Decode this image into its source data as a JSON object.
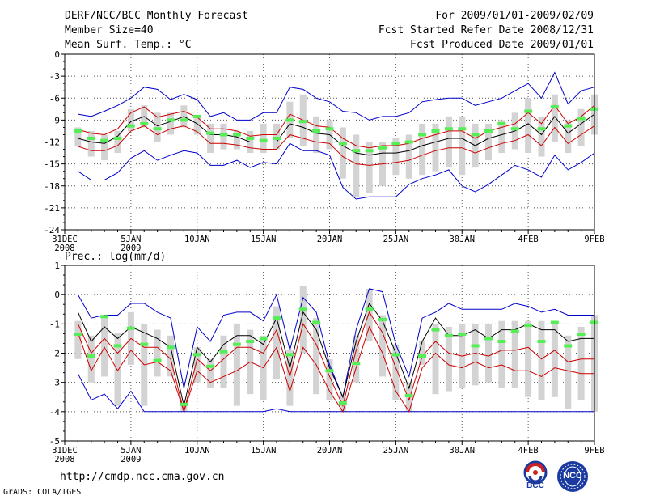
{
  "header": {
    "title": "DERF/NCC/BCC Monthly Forecast",
    "member_size": "Member Size=40",
    "variable": "Mean Surf. Temp.: °C",
    "forecast_period": "For 2009/01/01-2009/02/09",
    "start_date": "Fcst Started Refer Date 2008/12/31",
    "produced_date": "Fcst Produced Date 2009/01/01"
  },
  "footer": {
    "url": "http://cmdp.ncc.cma.gov.cn",
    "grads": "GrADS: COLA/IGES",
    "logo1_label": "BCC",
    "logo2_label": "NCC"
  },
  "colors": {
    "box": "#d3d3d3",
    "mean": "#000000",
    "red": "#cc0000",
    "blue": "#0000cc",
    "green": "#55ee55",
    "grid": "#555555"
  },
  "chart_data": [
    {
      "type": "line",
      "title": "Mean Surf. Temp.: °C",
      "ylabel": "°C",
      "ylim": [
        -24,
        0
      ],
      "yticks": [
        "0",
        "-3",
        "-6",
        "-9",
        "-12",
        "-15",
        "-18",
        "-21",
        "-24"
      ],
      "xticks": [
        {
          "day": 0,
          "label": "31DEC",
          "sub": "2008"
        },
        {
          "day": 5,
          "label": "5JAN",
          "sub": "2009"
        },
        {
          "day": 10,
          "label": "10JAN",
          "sub": ""
        },
        {
          "day": 15,
          "label": "15JAN",
          "sub": ""
        },
        {
          "day": 20,
          "label": "20JAN",
          "sub": ""
        },
        {
          "day": 25,
          "label": "25JAN",
          "sub": ""
        },
        {
          "day": 30,
          "label": "30JAN",
          "sub": ""
        },
        {
          "day": 35,
          "label": "4FEB",
          "sub": ""
        },
        {
          "day": 40,
          "label": "9FEB",
          "sub": ""
        }
      ],
      "days": [
        1,
        2,
        3,
        4,
        5,
        6,
        7,
        8,
        9,
        10,
        11,
        12,
        13,
        14,
        15,
        16,
        17,
        18,
        19,
        20,
        21,
        22,
        23,
        24,
        25,
        26,
        27,
        28,
        29,
        30,
        31,
        32,
        33,
        34,
        35,
        36,
        37,
        38,
        39,
        40
      ],
      "mean": [
        -11.5,
        -12,
        -12.2,
        -11.2,
        -9.2,
        -8.5,
        -9.8,
        -9.2,
        -8.5,
        -9.5,
        -11,
        -11,
        -11.3,
        -12,
        -12,
        -12,
        -9.5,
        -10,
        -10.8,
        -11,
        -12.5,
        -13.5,
        -13.8,
        -13.5,
        -13.5,
        -13.2,
        -12.5,
        -12,
        -11.5,
        -11.5,
        -12.5,
        -11.5,
        -11,
        -10.5,
        -9.5,
        -11,
        -8.5,
        -10.8,
        -9.5,
        -8.2
      ],
      "red_upper": [
        -10.3,
        -10.8,
        -11,
        -10.2,
        -8,
        -7.2,
        -8.6,
        -8.2,
        -7.8,
        -8.6,
        -10.2,
        -10.2,
        -10.5,
        -11.2,
        -11,
        -11,
        -8.2,
        -9,
        -9.8,
        -10,
        -11.5,
        -12.5,
        -12.8,
        -12.5,
        -12.5,
        -12.2,
        -11.5,
        -11,
        -10.5,
        -10.5,
        -11.5,
        -10.5,
        -10,
        -9.5,
        -8,
        -9.5,
        -7,
        -9.5,
        -8.5,
        -7
      ],
      "red_lower": [
        -12.6,
        -13.2,
        -13.2,
        -12.5,
        -10.5,
        -9.8,
        -11,
        -10.2,
        -9.8,
        -10.6,
        -12.2,
        -12.2,
        -12.4,
        -12.8,
        -13,
        -13,
        -11,
        -11.5,
        -12,
        -12.2,
        -14,
        -15,
        -15.2,
        -15,
        -14.8,
        -14.5,
        -13.8,
        -13.2,
        -12.8,
        -12.8,
        -13.5,
        -12.8,
        -12.2,
        -11.8,
        -11,
        -12.5,
        -10,
        -12.2,
        -11,
        -9.8
      ],
      "blue_upper": [
        -8.2,
        -8.5,
        -7.8,
        -7,
        -6,
        -4.5,
        -4.8,
        -6.2,
        -5.5,
        -6.2,
        -8.5,
        -8,
        -9,
        -9,
        -8,
        -8,
        -4.5,
        -4.8,
        -6,
        -6.5,
        -7.8,
        -8,
        -9,
        -8.5,
        -8.5,
        -8,
        -6.5,
        -6.2,
        -6,
        -6,
        -7,
        -6.5,
        -6,
        -5,
        -4,
        -6,
        -2.5,
        -6.8,
        -5,
        -4.5
      ],
      "blue_lower": [
        -16,
        -17.2,
        -17.2,
        -16.2,
        -14.2,
        -13.2,
        -14.5,
        -13.8,
        -13.2,
        -13.5,
        -15.2,
        -15.2,
        -14.5,
        -15.5,
        -14.8,
        -15,
        -12.2,
        -13.2,
        -13.2,
        -13.8,
        -18.2,
        -19.8,
        -19.5,
        -19.5,
        -19.5,
        -17.8,
        -17,
        -16.5,
        -15.8,
        -18,
        -18.8,
        -17.8,
        -16.5,
        -15.2,
        -15.8,
        -16.8,
        -13.8,
        -15.8,
        -14.8,
        -13.5
      ],
      "box_top": [
        -10,
        -10.5,
        -11,
        -10.5,
        -7.5,
        -7,
        -8,
        -8,
        -7,
        -8.5,
        -9.5,
        -9.5,
        -10.5,
        -10.5,
        -9.5,
        -9.5,
        -6.5,
        -5.5,
        -8.5,
        -9,
        -10,
        -11,
        -12,
        -12,
        -11.5,
        -11,
        -9.5,
        -9.5,
        -8.5,
        -8.5,
        -9.5,
        -9.5,
        -9,
        -8,
        -6,
        -8.5,
        -5.5,
        -9,
        -7.5,
        -5.5
      ],
      "box_bottom": [
        -12.5,
        -14,
        -14.5,
        -13.5,
        -10.5,
        -10,
        -12,
        -11,
        -10,
        -11,
        -13.5,
        -13,
        -13,
        -13.5,
        -13.5,
        -13,
        -11.5,
        -12.5,
        -13.5,
        -13,
        -17,
        -19.5,
        -19,
        -18,
        -16.5,
        -17,
        -16.5,
        -16,
        -15.5,
        -16.5,
        -15.5,
        -14.5,
        -13.5,
        -13,
        -13.5,
        -14,
        -12,
        -13.5,
        -12.5,
        -11
      ],
      "green": [
        -10.5,
        -11.5,
        -11.8,
        -11.5,
        -9.8,
        -9.5,
        -10.2,
        -9,
        -9,
        -8.5,
        -10.8,
        -11,
        -11,
        -11.5,
        -11.8,
        -11.5,
        -9,
        -9.2,
        -10.5,
        -10.2,
        -12.2,
        -13.2,
        -13.2,
        -12.8,
        -12.2,
        -12,
        -11,
        -10.5,
        -10.2,
        -10.2,
        -11,
        -10.5,
        -9.5,
        -10.2,
        -7.8,
        -10.2,
        -7.2,
        -9.8,
        -8.8,
        -7.5
      ]
    },
    {
      "type": "line",
      "title": "Prec.: log(mm/d)",
      "ylabel": "log(mm/d)",
      "ylim": [
        -5,
        1
      ],
      "yticks": [
        "1",
        "0",
        "-1",
        "-2",
        "-3",
        "-4",
        "-5"
      ],
      "xticks": [
        {
          "day": 0,
          "label": "31DEC",
          "sub": "2008"
        },
        {
          "day": 5,
          "label": "5JAN",
          "sub": "2009"
        },
        {
          "day": 10,
          "label": "10JAN",
          "sub": ""
        },
        {
          "day": 15,
          "label": "15JAN",
          "sub": ""
        },
        {
          "day": 20,
          "label": "20JAN",
          "sub": ""
        },
        {
          "day": 25,
          "label": "25JAN",
          "sub": ""
        },
        {
          "day": 30,
          "label": "30JAN",
          "sub": ""
        },
        {
          "day": 35,
          "label": "4FEB",
          "sub": ""
        },
        {
          "day": 40,
          "label": "9FEB",
          "sub": ""
        }
      ],
      "days": [
        1,
        2,
        3,
        4,
        5,
        6,
        7,
        8,
        9,
        10,
        11,
        12,
        13,
        14,
        15,
        16,
        17,
        18,
        19,
        20,
        21,
        22,
        23,
        24,
        25,
        26,
        27,
        28,
        29,
        30,
        31,
        32,
        33,
        34,
        35,
        36,
        37,
        38,
        39,
        40
      ],
      "mean": [
        -0.6,
        -1.6,
        -1.1,
        -1.5,
        -1.1,
        -1.3,
        -1.5,
        -1.8,
        -3.8,
        -1.8,
        -2.3,
        -1.7,
        -1.4,
        -1.4,
        -1.7,
        -0.8,
        -2.5,
        -0.6,
        -1.2,
        -2.5,
        -3.5,
        -1.6,
        -0.3,
        -0.9,
        -2.0,
        -3.2,
        -1.6,
        -0.8,
        -1.4,
        -1.4,
        -1.2,
        -1.5,
        -1.2,
        -1.2,
        -1.0,
        -1.2,
        -1.2,
        -1.6,
        -1.5,
        -1.5
      ],
      "red_upper": [
        -1.0,
        -2.0,
        -1.5,
        -2.0,
        -1.5,
        -1.8,
        -1.8,
        -2.2,
        -4.0,
        -2.2,
        -2.6,
        -2.2,
        -1.8,
        -1.8,
        -2.0,
        -1.2,
        -2.8,
        -1.0,
        -1.7,
        -2.8,
        -3.8,
        -1.9,
        -0.6,
        -1.3,
        -2.5,
        -3.6,
        -2.1,
        -1.6,
        -2.0,
        -2.1,
        -2.0,
        -2.1,
        -1.9,
        -1.9,
        -1.8,
        -2.2,
        -1.9,
        -2.3,
        -2.2,
        -2.2
      ],
      "red_lower": [
        -1.3,
        -2.6,
        -1.8,
        -2.6,
        -1.9,
        -2.4,
        -2.3,
        -2.6,
        -4.0,
        -2.6,
        -3.0,
        -2.8,
        -2.6,
        -2.3,
        -2.5,
        -1.8,
        -3.3,
        -1.8,
        -2.4,
        -3.3,
        -4.0,
        -2.5,
        -1.1,
        -2.0,
        -3.3,
        -4.0,
        -2.5,
        -2.0,
        -2.4,
        -2.5,
        -2.3,
        -2.5,
        -2.4,
        -2.6,
        -2.6,
        -2.8,
        -2.5,
        -2.6,
        -2.7,
        -2.7
      ],
      "blue_upper": [
        0,
        -0.8,
        -0.7,
        -0.7,
        -0.3,
        -0.3,
        -0.6,
        -0.8,
        -3.2,
        -1.1,
        -1.6,
        -0.7,
        -0.6,
        -0.6,
        -0.9,
        0.0,
        -1.9,
        -0.1,
        -0.6,
        -2.4,
        -3.5,
        -1.2,
        0.2,
        0.1,
        -1.7,
        -2.8,
        -0.8,
        -0.6,
        -0.3,
        -0.5,
        -0.5,
        -0.5,
        -0.5,
        -0.3,
        -0.4,
        -0.6,
        -0.5,
        -0.7,
        -0.7,
        -0.7
      ],
      "blue_lower": [
        -2.7,
        -3.6,
        -3.4,
        -3.9,
        -3.3,
        -4.0,
        -4.0,
        -4.0,
        -4.0,
        -4.0,
        -4.0,
        -4.0,
        -4.0,
        -4.0,
        -4.0,
        -3.9,
        -4.0,
        -4.0,
        -4.0,
        -4.0,
        -4.0,
        -4.0,
        -4.0,
        -4.0,
        -4.0,
        -4.0,
        -4.0,
        -4.0,
        -4.0,
        -4.0,
        -4.0,
        -4.0,
        -4.0,
        -4.0,
        -4.0,
        -4.0,
        -4.0,
        -4.0,
        -4.0,
        -4.0
      ],
      "box_top": [
        -0.9,
        -1.4,
        -0.8,
        -1.3,
        -0.6,
        -1.0,
        -1.2,
        -1.4,
        -3.8,
        -1.8,
        -2.2,
        -1.4,
        -1.0,
        -1.2,
        -1.4,
        -0.4,
        -1.9,
        0.3,
        -0.8,
        -2.2,
        -3.4,
        -1.4,
        0.2,
        -0.7,
        -1.7,
        -3.0,
        -1.6,
        -1.0,
        -1.1,
        -1.0,
        -1.0,
        -1.0,
        -0.9,
        -0.9,
        -0.9,
        -0.9,
        -0.9,
        -1.4,
        -1.1,
        -0.7
      ],
      "box_bottom": [
        -2.2,
        -3.0,
        -2.8,
        -3.8,
        -2.4,
        -3.8,
        -2.8,
        -2.8,
        -4.0,
        -3.0,
        -3.2,
        -3.2,
        -3.8,
        -3.4,
        -3.6,
        -2.9,
        -3.8,
        -2.0,
        -3.4,
        -3.6,
        -4.0,
        -3.0,
        -1.6,
        -2.8,
        -3.6,
        -4.0,
        -2.4,
        -3.4,
        -3.3,
        -3.2,
        -3.1,
        -3.0,
        -3.2,
        -3.2,
        -3.5,
        -3.6,
        -3.5,
        -3.9,
        -3.6,
        -4.0
      ],
      "green": [
        -1.35,
        -2.1,
        -0.75,
        -1.75,
        -1.15,
        -1.7,
        -2.25,
        -1.8,
        -3.75,
        -2.05,
        -2.45,
        -1.95,
        -1.7,
        -1.6,
        -1.5,
        -0.8,
        -2.05,
        -0.5,
        -0.95,
        -2.6,
        -3.7,
        -2.35,
        -0.5,
        -0.85,
        -2.05,
        -3.45,
        -2.1,
        -1.2,
        -1.4,
        -1.35,
        -1.75,
        -1.5,
        -1.6,
        -1.25,
        -1.05,
        -1.6,
        -0.95,
        -1.75,
        -1.35,
        -0.95
      ]
    }
  ]
}
